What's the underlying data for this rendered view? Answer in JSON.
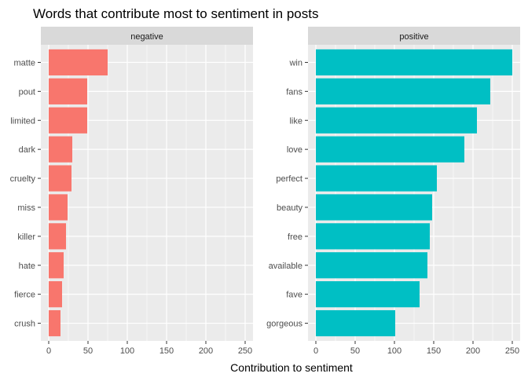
{
  "chart_data": {
    "type": "bar",
    "orientation": "horizontal",
    "title": "Words that contribute most to sentiment in posts",
    "xlabel": "Contribution to sentiment",
    "ylabel": "",
    "xlim": [
      0,
      250
    ],
    "x_ticks": [
      0,
      50,
      100,
      150,
      200,
      250
    ],
    "grid": true,
    "legend": "none",
    "panels": [
      {
        "name": "negative",
        "color": "#F8766D",
        "categories": [
          "matte",
          "pout",
          "limited",
          "dark",
          "cruelty",
          "miss",
          "killer",
          "hate",
          "fierce",
          "crush"
        ],
        "values": [
          75,
          49,
          49,
          30,
          29,
          24,
          22,
          19,
          17,
          15
        ]
      },
      {
        "name": "positive",
        "color": "#00BFC4",
        "categories": [
          "win",
          "fans",
          "like",
          "love",
          "perfect",
          "beauty",
          "free",
          "available",
          "fave",
          "gorgeous"
        ],
        "values": [
          250,
          222,
          205,
          189,
          154,
          148,
          145,
          142,
          132,
          101
        ]
      }
    ]
  }
}
